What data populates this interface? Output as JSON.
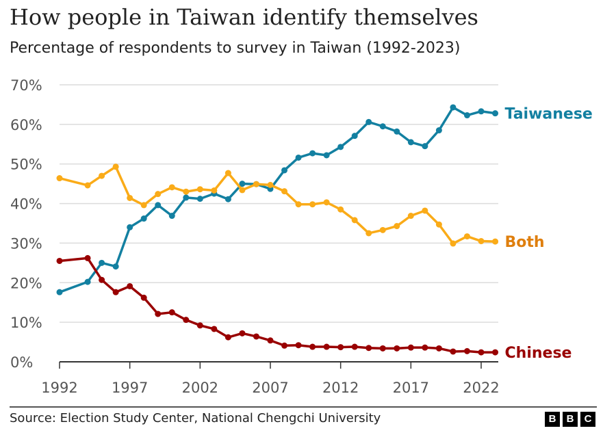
{
  "title": "How people in Taiwan identify themselves",
  "subtitle": "Percentage of respondents to survey in Taiwan (1992-2023)",
  "source": "Source: Election Study Center, National Chengchi University",
  "logo": "BBC",
  "chart_data": {
    "type": "line",
    "title": "How people in Taiwan identify themselves",
    "subtitle": "Percentage of respondents to survey in Taiwan (1992-2023)",
    "xlabel": "",
    "ylabel": "",
    "xlim": [
      1992,
      2023
    ],
    "ylim": [
      0,
      70
    ],
    "grid": true,
    "legend": "direct labels at line ends (right)",
    "x_ticks": [
      1992,
      1997,
      2002,
      2007,
      2012,
      2017,
      2022
    ],
    "x_tick_labels": [
      "1992",
      "1997",
      "2002",
      "2007",
      "2012",
      "2017",
      "2022"
    ],
    "y_ticks": [
      0,
      10,
      20,
      30,
      40,
      50,
      60,
      70
    ],
    "y_tick_labels": [
      "0%",
      "10%",
      "20%",
      "30%",
      "40%",
      "50%",
      "60%",
      "70%"
    ],
    "x": [
      1992,
      1994,
      1995,
      1996,
      1997,
      1998,
      1999,
      2000,
      2001,
      2002,
      2003,
      2004,
      2005,
      2006,
      2007,
      2008,
      2009,
      2010,
      2011,
      2012,
      2013,
      2014,
      2015,
      2016,
      2017,
      2018,
      2019,
      2020,
      2021,
      2022,
      2023
    ],
    "series": [
      {
        "name": "Taiwanese",
        "color": "#1380A1",
        "values": [
          17.6,
          20.2,
          25.0,
          24.1,
          34.0,
          36.2,
          39.6,
          36.9,
          41.5,
          41.2,
          42.5,
          41.1,
          45.0,
          44.9,
          43.7,
          48.4,
          51.6,
          52.7,
          52.2,
          54.3,
          57.1,
          60.6,
          59.5,
          58.2,
          55.5,
          54.5,
          58.5,
          64.3,
          62.3,
          63.3,
          62.8
        ]
      },
      {
        "name": "Both",
        "color": "#FAAB18",
        "label_color": "#DF7F0E",
        "values": [
          46.4,
          44.6,
          47.0,
          49.3,
          41.4,
          39.6,
          42.4,
          44.1,
          43.0,
          43.6,
          43.3,
          47.7,
          43.4,
          44.9,
          44.7,
          43.1,
          39.8,
          39.8,
          40.3,
          38.5,
          35.8,
          32.5,
          33.3,
          34.3,
          36.9,
          38.2,
          34.7,
          29.9,
          31.7,
          30.5,
          30.4
        ]
      },
      {
        "name": "Chinese",
        "color": "#990000",
        "values": [
          25.5,
          26.2,
          20.7,
          17.6,
          19.1,
          16.2,
          12.1,
          12.5,
          10.6,
          9.2,
          8.3,
          6.2,
          7.2,
          6.4,
          5.4,
          4.1,
          4.2,
          3.8,
          3.8,
          3.7,
          3.8,
          3.5,
          3.4,
          3.4,
          3.6,
          3.6,
          3.4,
          2.6,
          2.7,
          2.4,
          2.4
        ]
      }
    ]
  }
}
